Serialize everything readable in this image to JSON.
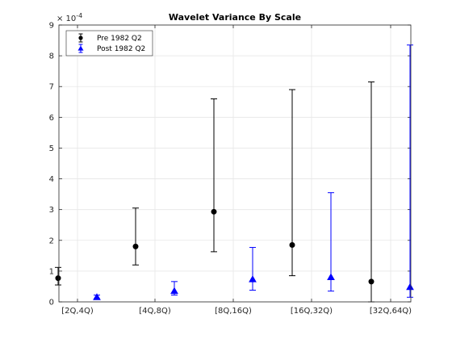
{
  "chart_data": {
    "type": "errorbar",
    "title": "Wavelet Variance By Scale",
    "xlabel": "",
    "ylabel": "",
    "y_exponent_label": "× 10",
    "y_exponent_power": "-4",
    "ylim": [
      0,
      9
    ],
    "yticks": [
      0,
      1,
      2,
      3,
      4,
      5,
      6,
      7,
      8,
      9
    ],
    "categories": [
      "[2Q,4Q)",
      "[4Q,8Q)",
      "[8Q,16Q)",
      "[16Q,32Q)",
      "[32Q,64Q)"
    ],
    "grid": true,
    "legend_position": "top-left",
    "series": [
      {
        "name": "Pre 1982 Q2",
        "color": "#000000",
        "marker": "circle",
        "values": [
          0.77,
          1.8,
          2.93,
          1.85,
          0.66
        ],
        "lower": [
          0.55,
          1.2,
          1.63,
          0.85,
          0.0
        ],
        "upper": [
          1.12,
          3.05,
          6.6,
          6.9,
          7.15
        ]
      },
      {
        "name": "Post 1982 Q2",
        "color": "#0000ff",
        "marker": "triangle",
        "values": [
          0.15,
          0.35,
          0.73,
          0.8,
          0.48
        ],
        "lower": [
          0.1,
          0.22,
          0.38,
          0.35,
          0.15
        ],
        "upper": [
          0.22,
          0.66,
          1.77,
          3.55,
          8.35
        ]
      }
    ]
  }
}
